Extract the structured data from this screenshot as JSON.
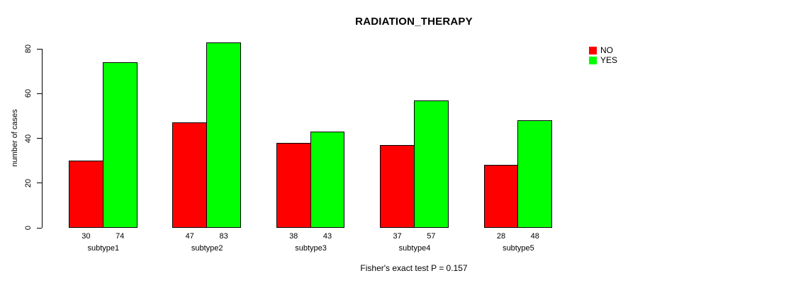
{
  "chart_data": {
    "type": "bar",
    "title": "RADIATION_THERAPY",
    "categories": [
      "subtype1",
      "subtype2",
      "subtype3",
      "subtype4",
      "subtype5"
    ],
    "series": [
      {
        "name": "NO",
        "color": "#ff0000",
        "values": [
          30,
          47,
          38,
          37,
          28
        ]
      },
      {
        "name": "YES",
        "color": "#00ff00",
        "values": [
          74,
          83,
          43,
          57,
          48
        ]
      }
    ],
    "xlabel": "",
    "ylabel": "number of cases",
    "ylim": [
      0,
      80
    ],
    "yticks": [
      0,
      20,
      40,
      60,
      80
    ],
    "grid": false,
    "legend_position": "top-right",
    "bar_value_labels": true
  },
  "caption": "Fisher's exact test P = 0.157"
}
